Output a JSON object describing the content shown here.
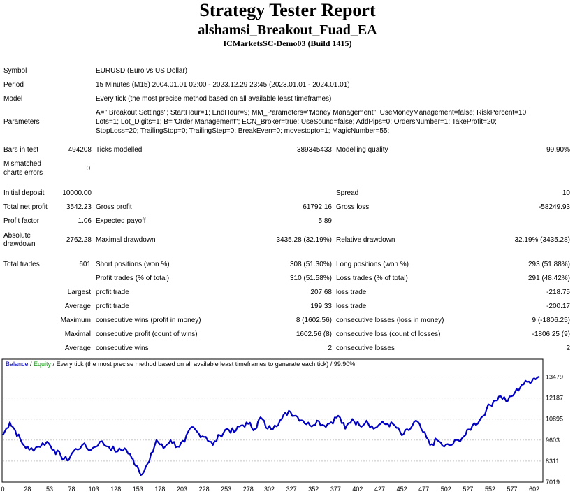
{
  "header": {
    "title": "Strategy Tester Report",
    "subtitle": "alshamsi_Breakout_Fuad_EA",
    "server": "ICMarketsSC-Demo03 (Build 1415)"
  },
  "info": {
    "symbol_label": "Symbol",
    "symbol_value": "EURUSD (Euro vs US Dollar)",
    "period_label": "Period",
    "period_value": "15 Minutes (M15) 2004.01.01 02:00 - 2023.12.29 23:45 (2023.01.01 - 2024.01.01)",
    "model_label": "Model",
    "model_value": "Every tick (the most precise method based on all available least timeframes)",
    "parameters_label": "Parameters",
    "parameters_lines": [
      "A=\" Breakout Settings\"; StartHour=1; EndHour=9; MM_Parameters=\"Money Management\"; UseMoneyManagement=false; RiskPercent=10;",
      "Lots=1; Lot_Digits=1; B=\"Order Management\"; ECN_Broker=true; UseSound=false; AddPips=0; OrdersNumber=1; TakeProfit=20;",
      "StopLoss=20; TrailingStop=0; TrailingStep=0; BreakEven=0; movestopto=1; MagicNumber=55;"
    ],
    "bars_label": "Bars in test",
    "bars_value": "494208",
    "ticks_label": "Ticks modelled",
    "ticks_value": "389345433",
    "quality_label": "Modelling quality",
    "quality_value": "99.90%",
    "mismatch_label_1": "Mismatched",
    "mismatch_label_2": "charts errors",
    "mismatch_value": "0"
  },
  "stats": {
    "initial_deposit_label": "Initial deposit",
    "initial_deposit": "10000.00",
    "spread_label": "Spread",
    "spread": "10",
    "net_profit_label": "Total net profit",
    "net_profit": "3542.23",
    "gross_profit_label": "Gross profit",
    "gross_profit": "61792.16",
    "gross_loss_label": "Gross loss",
    "gross_loss": "-58249.93",
    "profit_factor_label": "Profit factor",
    "profit_factor": "1.06",
    "expected_payoff_label": "Expected payoff",
    "expected_payoff": "5.89",
    "abs_dd_label_1": "Absolute",
    "abs_dd_label_2": "drawdown",
    "abs_dd": "2762.28",
    "max_dd_label": "Maximal drawdown",
    "max_dd": "3435.28 (32.19%)",
    "rel_dd_label": "Relative drawdown",
    "rel_dd": "32.19% (3435.28)",
    "total_trades_label": "Total trades",
    "total_trades": "601",
    "short_label": "Short positions (won %)",
    "short": "308 (51.30%)",
    "long_label": "Long positions (won %)",
    "long": "293 (51.88%)",
    "profit_trades_label": "Profit trades (% of total)",
    "profit_trades": "310 (51.58%)",
    "loss_trades_label": "Loss trades (% of total)",
    "loss_trades": "291 (48.42%)",
    "largest_label": "Largest",
    "largest_profit_label": "profit trade",
    "largest_profit": "207.68",
    "largest_loss_label": "loss trade",
    "largest_loss": "-218.75",
    "average_label": "Average",
    "average_profit_label": "profit trade",
    "average_profit": "199.33",
    "average_loss_label": "loss trade",
    "average_loss": "-200.17",
    "maximum_label": "Maximum",
    "max_cons_wins_label": "consecutive wins (profit in money)",
    "max_cons_wins": "8 (1602.56)",
    "max_cons_losses_label": "consecutive losses (loss in money)",
    "max_cons_losses": "9 (-1806.25)",
    "maximal_label": "Maximal",
    "maximal_profit_label": "consecutive profit (count of wins)",
    "maximal_profit": "1602.56 (8)",
    "maximal_loss_label": "consecutive loss (count of losses)",
    "maximal_loss": "-1806.25 (9)",
    "avg_cons_label": "Average",
    "avg_cons_wins_label": "consecutive wins",
    "avg_cons_wins": "2",
    "avg_cons_losses_label": "consecutive losses",
    "avg_cons_losses": "2"
  },
  "chart_data": {
    "type": "line",
    "legend_balance": "Balance",
    "legend_sep": " / ",
    "legend_equity": "Equity",
    "legend_rest": " / Every tick (the most precise method based on all available least timeframes to generate each tick) / 99.90%",
    "colors": {
      "balance": "#0000c0",
      "equity": "#00a000",
      "grid": "#c8c8c8",
      "border": "#000000"
    },
    "ylim": [
      7019,
      13800
    ],
    "xlim": [
      0,
      611
    ],
    "y_ticks": [
      "13479",
      "12187",
      "10895",
      "9603",
      "8311",
      "7019"
    ],
    "x_ticks": [
      "0",
      "28",
      "53",
      "78",
      "103",
      "128",
      "153",
      "178",
      "203",
      "228",
      "253",
      "278",
      "302",
      "327",
      "352",
      "377",
      "402",
      "427",
      "452",
      "477",
      "502",
      "527",
      "552",
      "577",
      "602"
    ],
    "series": [
      {
        "name": "Balance",
        "x": [
          0,
          8,
          14,
          22,
          30,
          40,
          50,
          58,
          66,
          73,
          80,
          90,
          100,
          110,
          120,
          130,
          138,
          146,
          152,
          158,
          166,
          174,
          182,
          190,
          198,
          206,
          214,
          222,
          230,
          238,
          246,
          254,
          262,
          270,
          278,
          286,
          292,
          300,
          308,
          316,
          324,
          332,
          340,
          348,
          356,
          364,
          372,
          380,
          388,
          396,
          404,
          412,
          420,
          428,
          436,
          444,
          452,
          460,
          468,
          476,
          484,
          492,
          500,
          508,
          516,
          524,
          532,
          540,
          548,
          556,
          564,
          572,
          580,
          588,
          596,
          602,
          608
        ],
        "y": [
          9900,
          10700,
          10200,
          9400,
          9000,
          9200,
          9500,
          9000,
          8600,
          8350,
          8900,
          9300,
          9000,
          9500,
          9200,
          8900,
          9100,
          8500,
          8000,
          7500,
          8300,
          9600,
          9100,
          9600,
          9200,
          9500,
          10400,
          10000,
          9800,
          9300,
          9900,
          10300,
          10100,
          10500,
          10600,
          10300,
          11000,
          10300,
          10500,
          10900,
          11400,
          11100,
          10800,
          10500,
          10800,
          10500,
          10700,
          11100,
          10300,
          10900,
          10500,
          10800,
          10300,
          10600,
          10600,
          10500,
          9900,
          10200,
          10800,
          10100,
          9300,
          9600,
          9200,
          9300,
          9600,
          9900,
          10500,
          10800,
          11500,
          12000,
          12300,
          12000,
          12500,
          13000,
          13200,
          13400,
          13500
        ]
      }
    ]
  }
}
